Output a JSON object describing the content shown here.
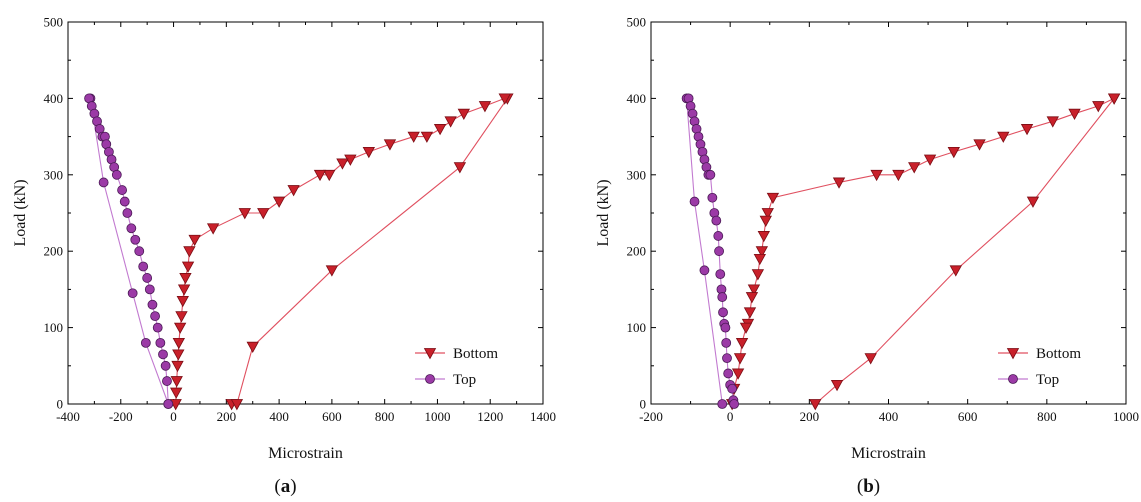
{
  "colors": {
    "bottom": "#c8202a",
    "bottom_line": "#e05060",
    "top": "#9b3aa6",
    "top_line": "#c27ad0",
    "axis": "#000000"
  },
  "chart_data": [
    {
      "type": "scatter",
      "panel_label": "(a)",
      "xlabel": "Microstrain",
      "ylabel": "Load (kN)",
      "xlim": [
        -400,
        1400
      ],
      "ylim": [
        0,
        500
      ],
      "xticks": [
        -400,
        -200,
        0,
        200,
        400,
        600,
        800,
        1000,
        1200,
        1400
      ],
      "yticks": [
        0,
        100,
        200,
        300,
        400,
        500
      ],
      "legend": "bottom-right",
      "series": [
        {
          "name": "Bottom",
          "marker": "triangle-down",
          "x": [
            220,
            240,
            300,
            600,
            1085,
            1265,
            1255,
            1180,
            1100,
            1050,
            1010,
            960,
            910,
            820,
            740,
            670,
            640,
            590,
            555,
            455,
            400,
            340,
            270,
            150,
            80,
            60,
            55,
            45,
            40,
            35,
            30,
            25,
            20,
            18,
            15,
            12,
            10,
            8
          ],
          "y": [
            0,
            0,
            75,
            175,
            310,
            400,
            400,
            390,
            380,
            370,
            360,
            350,
            350,
            340,
            330,
            320,
            315,
            300,
            300,
            280,
            265,
            250,
            250,
            230,
            215,
            200,
            180,
            165,
            150,
            135,
            115,
            100,
            80,
            65,
            50,
            30,
            15,
            0
          ]
        },
        {
          "name": "Top",
          "marker": "circle",
          "x": [
            -20,
            -105,
            -155,
            -265,
            -315,
            -320,
            -310,
            -300,
            -290,
            -280,
            -270,
            -260,
            -255,
            -245,
            -235,
            -225,
            -215,
            -195,
            -185,
            -175,
            -160,
            -145,
            -130,
            -115,
            -100,
            -90,
            -80,
            -70,
            -60,
            -50,
            -40,
            -30,
            -25,
            -20
          ],
          "y": [
            0,
            80,
            145,
            290,
            400,
            400,
            390,
            380,
            370,
            360,
            350,
            350,
            340,
            330,
            320,
            310,
            300,
            280,
            265,
            250,
            230,
            215,
            200,
            180,
            165,
            150,
            130,
            115,
            100,
            80,
            65,
            50,
            30,
            0
          ]
        }
      ]
    },
    {
      "type": "scatter",
      "panel_label": "(b)",
      "xlabel": "Microstrain",
      "ylabel": "Load (kN)",
      "xlim": [
        -200,
        1000
      ],
      "ylim": [
        0,
        500
      ],
      "xticks": [
        -200,
        0,
        200,
        400,
        600,
        800,
        1000
      ],
      "yticks": [
        0,
        100,
        200,
        300,
        400,
        500
      ],
      "legend": "bottom-right",
      "series": [
        {
          "name": "Bottom",
          "marker": "triangle-down",
          "x": [
            215,
            270,
            355,
            570,
            765,
            970,
            970,
            930,
            870,
            815,
            750,
            690,
            630,
            565,
            505,
            465,
            425,
            370,
            275,
            108,
            95,
            90,
            85,
            80,
            75,
            70,
            60,
            55,
            50,
            45,
            40,
            30,
            25,
            20,
            10,
            5
          ],
          "y": [
            0,
            25,
            60,
            175,
            265,
            400,
            400,
            390,
            380,
            370,
            360,
            350,
            340,
            330,
            320,
            310,
            300,
            300,
            290,
            270,
            250,
            240,
            220,
            200,
            190,
            170,
            150,
            140,
            120,
            105,
            100,
            80,
            60,
            40,
            20,
            0
          ]
        },
        {
          "name": "Top",
          "marker": "circle",
          "x": [
            -20,
            -65,
            -90,
            -110,
            -105,
            -100,
            -95,
            -90,
            -85,
            -80,
            -75,
            -70,
            -65,
            -60,
            -55,
            -50,
            -45,
            -40,
            -35,
            -30,
            -28,
            -25,
            -22,
            -20,
            -18,
            -15,
            -12,
            -10,
            -8,
            -5,
            0,
            5,
            8,
            10
          ],
          "y": [
            0,
            175,
            265,
            400,
            400,
            390,
            380,
            370,
            360,
            350,
            340,
            330,
            320,
            310,
            300,
            300,
            270,
            250,
            240,
            220,
            200,
            170,
            150,
            140,
            120,
            105,
            100,
            80,
            60,
            40,
            25,
            20,
            5,
            0
          ]
        }
      ]
    }
  ]
}
